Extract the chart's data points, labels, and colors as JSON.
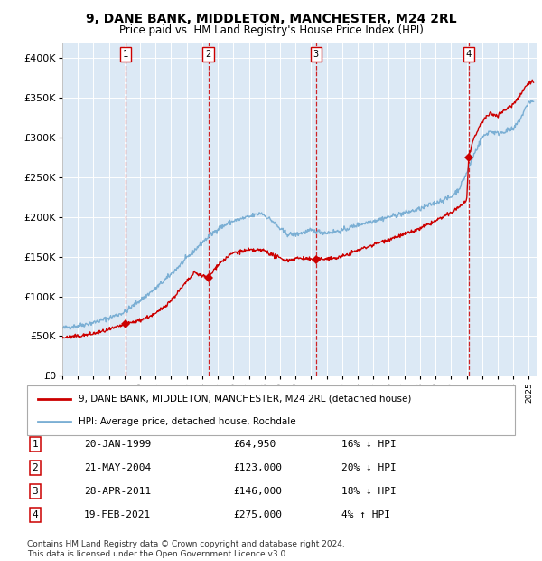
{
  "title": "9, DANE BANK, MIDDLETON, MANCHESTER, M24 2RL",
  "subtitle": "Price paid vs. HM Land Registry's House Price Index (HPI)",
  "hpi_color": "#7BAFD4",
  "price_color": "#cc0000",
  "dashed_color": "#cc0000",
  "bg_color": "#dce9f5",
  "sale_dates": [
    1999.06,
    2004.39,
    2011.32,
    2021.13
  ],
  "sale_prices": [
    64950,
    123000,
    146000,
    275000
  ],
  "sale_labels": [
    "1",
    "2",
    "3",
    "4"
  ],
  "legend_label_price": "9, DANE BANK, MIDDLETON, MANCHESTER, M24 2RL (detached house)",
  "legend_label_hpi": "HPI: Average price, detached house, Rochdale",
  "table_rows": [
    [
      "1",
      "20-JAN-1999",
      "£64,950",
      "16% ↓ HPI"
    ],
    [
      "2",
      "21-MAY-2004",
      "£123,000",
      "20% ↓ HPI"
    ],
    [
      "3",
      "28-APR-2011",
      "£146,000",
      "18% ↓ HPI"
    ],
    [
      "4",
      "19-FEB-2021",
      "£275,000",
      "4% ↑ HPI"
    ]
  ],
  "footer": "Contains HM Land Registry data © Crown copyright and database right 2024.\nThis data is licensed under the Open Government Licence v3.0.",
  "ylim": [
    0,
    420000
  ],
  "yticks": [
    0,
    50000,
    100000,
    150000,
    200000,
    250000,
    300000,
    350000,
    400000
  ],
  "ytick_labels": [
    "£0",
    "£50K",
    "£100K",
    "£150K",
    "£200K",
    "£250K",
    "£300K",
    "£350K",
    "£400K"
  ],
  "hpi_anchors_x": [
    1995.0,
    1996.0,
    1997.0,
    1998.0,
    1999.0,
    2000.0,
    2001.0,
    2002.0,
    2003.0,
    2004.0,
    2005.0,
    2006.0,
    2007.0,
    2007.8,
    2008.5,
    2009.0,
    2009.5,
    2010.0,
    2011.0,
    2012.0,
    2013.0,
    2014.0,
    2015.0,
    2016.0,
    2017.0,
    2018.0,
    2019.0,
    2020.0,
    2020.5,
    2021.0,
    2021.5,
    2022.0,
    2022.5,
    2023.0,
    2023.5,
    2024.0,
    2024.5,
    2025.0
  ],
  "hpi_anchors_y": [
    60000,
    63000,
    67000,
    73000,
    80000,
    95000,
    110000,
    128000,
    148000,
    168000,
    185000,
    195000,
    200000,
    205000,
    195000,
    185000,
    178000,
    178000,
    183000,
    180000,
    183000,
    190000,
    195000,
    200000,
    205000,
    210000,
    218000,
    225000,
    235000,
    255000,
    280000,
    300000,
    308000,
    305000,
    308000,
    310000,
    325000,
    345000
  ],
  "price_anchors_x": [
    1995.0,
    1996.0,
    1997.0,
    1998.0,
    1999.06,
    2000.0,
    2001.0,
    2002.0,
    2003.5,
    2004.39,
    2005.0,
    2006.0,
    2007.0,
    2008.0,
    2008.5,
    2009.0,
    2009.5,
    2010.0,
    2010.5,
    2011.32,
    2012.0,
    2012.5,
    2013.0,
    2014.0,
    2015.0,
    2016.0,
    2017.0,
    2018.0,
    2019.0,
    2020.0,
    2021.0,
    2021.13,
    2021.5,
    2022.0,
    2022.5,
    2023.0,
    2023.5,
    2024.0,
    2024.5,
    2025.0
  ],
  "price_anchors_y": [
    48000,
    50000,
    53000,
    58000,
    64950,
    70000,
    78000,
    95000,
    130000,
    123000,
    140000,
    155000,
    158000,
    158000,
    152000,
    148000,
    145000,
    148000,
    148000,
    146000,
    148000,
    148000,
    150000,
    158000,
    165000,
    172000,
    178000,
    185000,
    195000,
    205000,
    220000,
    275000,
    300000,
    320000,
    330000,
    328000,
    335000,
    342000,
    355000,
    370000
  ]
}
